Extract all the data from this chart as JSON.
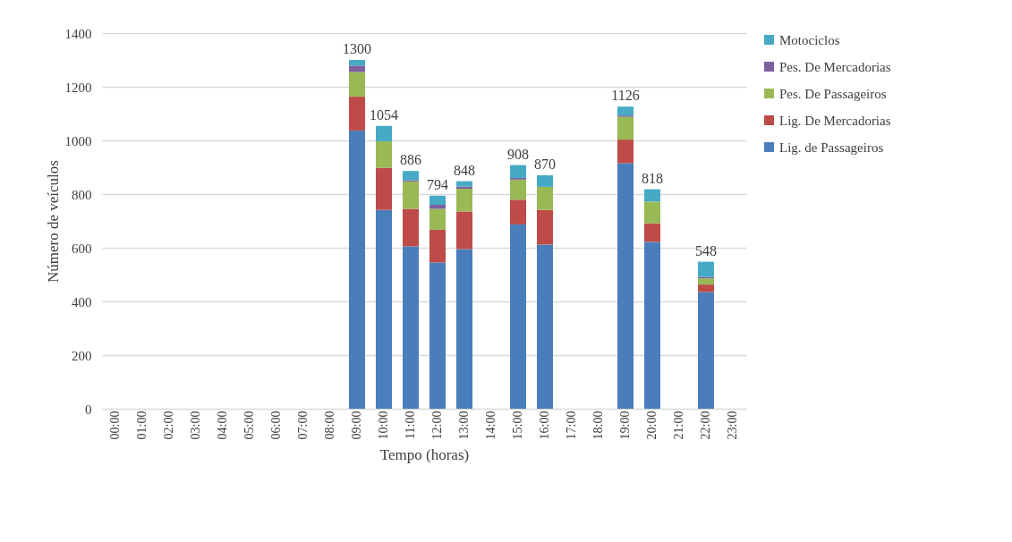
{
  "chart_data": {
    "type": "bar",
    "stacked": true,
    "xlabel": "Tempo (horas)",
    "ylabel": "Número de veículos",
    "categories": [
      "00:00",
      "01:00",
      "02:00",
      "03:00",
      "04:00",
      "05:00",
      "06:00",
      "07:00",
      "08:00",
      "09:00",
      "10:00",
      "11:00",
      "12:00",
      "13:00",
      "14:00",
      "15:00",
      "16:00",
      "17:00",
      "18:00",
      "19:00",
      "20:00",
      "21:00",
      "22:00",
      "23:00"
    ],
    "series": [
      {
        "name": "Lig. de Passageiros",
        "color": "#4a7ebb",
        "values": [
          null,
          null,
          null,
          null,
          null,
          null,
          null,
          null,
          null,
          1037,
          741,
          605,
          545,
          595,
          null,
          687,
          612,
          null,
          null,
          915,
          622,
          null,
          435,
          null
        ]
      },
      {
        "name": "Lig. De Mercadorias",
        "color": "#be4b48",
        "values": [
          null,
          null,
          null,
          null,
          null,
          null,
          null,
          null,
          null,
          126,
          157,
          140,
          122,
          140,
          null,
          92,
          129,
          null,
          null,
          88,
          69,
          null,
          28,
          null
        ]
      },
      {
        "name": "Pes. De Passageiros",
        "color": "#98b954",
        "values": [
          null,
          null,
          null,
          null,
          null,
          null,
          null,
          null,
          null,
          92,
          99,
          102,
          78,
          85,
          null,
          75,
          86,
          null,
          null,
          85,
          81,
          null,
          23,
          null
        ]
      },
      {
        "name": "Pes. De Mercadorias",
        "color": "#7d60a0",
        "values": [
          null,
          null,
          null,
          null,
          null,
          null,
          null,
          null,
          null,
          24,
          0,
          5,
          15,
          8,
          null,
          6,
          0,
          null,
          null,
          5,
          0,
          null,
          5,
          null
        ]
      },
      {
        "name": "Motociclos",
        "color": "#46aac5",
        "values": [
          null,
          null,
          null,
          null,
          null,
          null,
          null,
          null,
          null,
          21,
          57,
          34,
          34,
          20,
          null,
          48,
          43,
          null,
          null,
          33,
          46,
          null,
          57,
          null
        ]
      }
    ],
    "totals": [
      null,
      null,
      null,
      null,
      null,
      null,
      null,
      null,
      null,
      "1300",
      "1054",
      "886",
      "794",
      "848",
      null,
      "908",
      "870",
      null,
      null,
      "1126",
      "818",
      null,
      "548",
      null
    ],
    "ylim": [
      0,
      1400
    ],
    "yticks": [
      0,
      200,
      400,
      600,
      800,
      1000,
      1200,
      1400
    ],
    "grid": "y",
    "legend": "right"
  }
}
